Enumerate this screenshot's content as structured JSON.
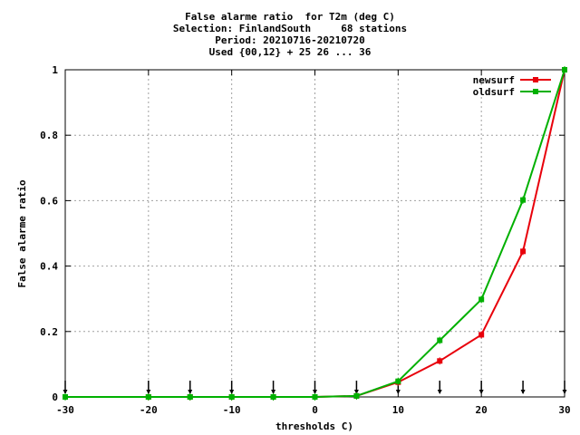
{
  "chart_data": {
    "type": "line",
    "title_lines": [
      "False alarme ratio  for T2m (deg C)",
      "Selection: FinlandSouth     68 stations",
      "Period: 20210716-20210720",
      "Used {00,12} + 25 26 ... 36"
    ],
    "xlabel": "thresholds C)",
    "ylabel": "False alarme ratio",
    "xlim": [
      -30,
      30
    ],
    "ylim": [
      0,
      1
    ],
    "x_ticks": [
      -30,
      -20,
      -10,
      0,
      10,
      20,
      30
    ],
    "y_ticks": [
      0,
      0.2,
      0.4,
      0.6,
      0.8,
      1
    ],
    "x_tick_labels": [
      "-30",
      "-20",
      "-10",
      "0",
      "10",
      "20",
      "30"
    ],
    "y_tick_labels": [
      "0",
      "0.2",
      "0.4",
      "0.6",
      "0.8",
      "1"
    ],
    "grid": true,
    "legend_position": "top-right",
    "marker_arrows_x": [
      -30,
      -20,
      -15,
      -10,
      -5,
      0,
      5,
      10,
      15,
      20,
      25,
      30
    ],
    "series": [
      {
        "name": "newsurf",
        "color": "#e8000b",
        "x": [
          -30,
          -20,
          -15,
          -10,
          -5,
          0,
          5,
          10,
          15,
          20,
          25,
          30
        ],
        "y": [
          0,
          0,
          0,
          0,
          0,
          0,
          0.003,
          0.045,
          0.11,
          0.19,
          0.445,
          1.0
        ]
      },
      {
        "name": "oldsurf",
        "color": "#00b000",
        "x": [
          -30,
          -20,
          -15,
          -10,
          -5,
          0,
          5,
          10,
          15,
          20,
          25,
          30
        ],
        "y": [
          0,
          0,
          0,
          0,
          0,
          0,
          0.003,
          0.048,
          0.173,
          0.298,
          0.602,
          1.0
        ]
      }
    ]
  }
}
